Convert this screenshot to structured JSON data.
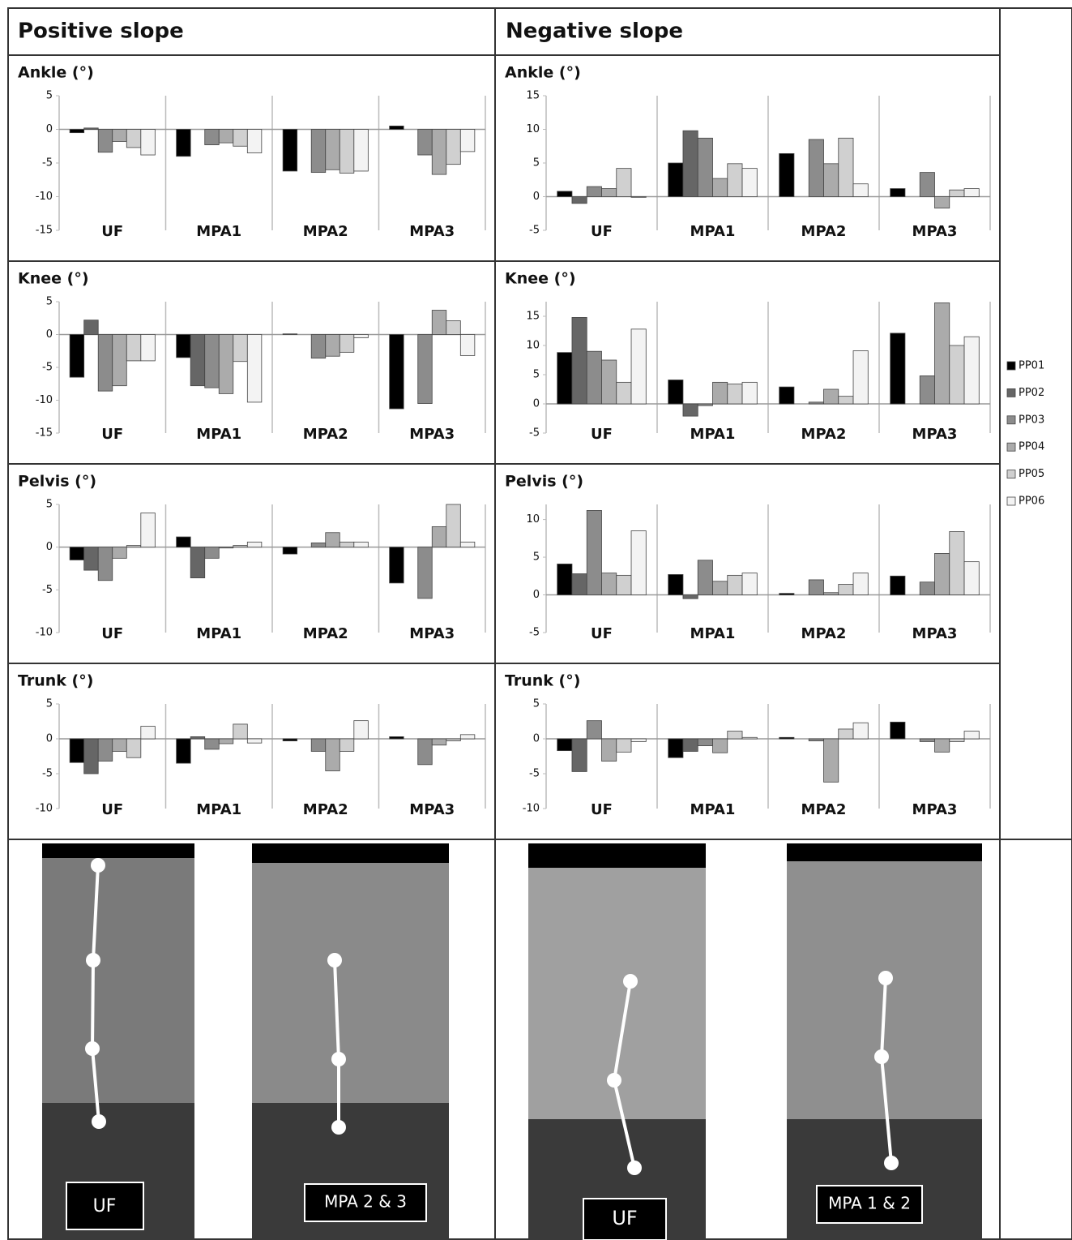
{
  "headers": [
    "Positive slope",
    "Negative slope"
  ],
  "legend": [
    {
      "name": "PP01",
      "color": "#000000"
    },
    {
      "name": "PP02",
      "color": "#666666"
    },
    {
      "name": "PP03",
      "color": "#8c8c8c"
    },
    {
      "name": "PP04",
      "color": "#ababab"
    },
    {
      "name": "PP05",
      "color": "#d0d0d0"
    },
    {
      "name": "PP06",
      "color": "#f3f3f3"
    }
  ],
  "chart_data": [
    {
      "type": "bar",
      "title": "Ankle (°)",
      "categories": [
        "UF",
        "MPA1",
        "MPA2",
        "MPA3"
      ],
      "ylim": [
        -15,
        5
      ],
      "yticks": [
        -15,
        -10,
        -5,
        0,
        5
      ],
      "series": [
        {
          "values": [
            -0.5,
            -4,
            -6.2,
            0.5
          ]
        },
        {
          "values": [
            0.2,
            0,
            0,
            0
          ]
        },
        {
          "values": [
            -3.4,
            -2.3,
            -6.4,
            -3.8
          ]
        },
        {
          "values": [
            -1.8,
            -2,
            -6,
            -6.7
          ]
        },
        {
          "values": [
            -2.7,
            -2.5,
            -6.5,
            -5.2
          ]
        },
        {
          "values": [
            -3.8,
            -3.5,
            -6.2,
            -3.3
          ]
        }
      ]
    },
    {
      "type": "bar",
      "title": "Ankle (°)",
      "categories": [
        "UF",
        "MPA1",
        "MPA2",
        "MPA3"
      ],
      "ylim": [
        -5,
        15
      ],
      "yticks": [
        -5,
        0,
        5,
        10,
        15
      ],
      "series": [
        {
          "values": [
            0.8,
            5,
            6.4,
            1.2
          ]
        },
        {
          "values": [
            -1,
            9.8,
            0,
            0
          ]
        },
        {
          "values": [
            1.5,
            8.7,
            8.5,
            3.6
          ]
        },
        {
          "values": [
            1.2,
            2.7,
            4.9,
            -1.7
          ]
        },
        {
          "values": [
            4.2,
            4.9,
            8.7,
            1
          ]
        },
        {
          "values": [
            -0.1,
            4.2,
            1.9,
            1.2
          ]
        }
      ]
    },
    {
      "type": "bar",
      "title": "Knee (°)",
      "categories": [
        "UF",
        "MPA1",
        "MPA2",
        "MPA3"
      ],
      "ylim": [
        -15,
        5
      ],
      "yticks": [
        -15,
        -10,
        -5,
        0,
        5
      ],
      "series": [
        {
          "values": [
            -6.5,
            -3.5,
            0.1,
            -11.3
          ]
        },
        {
          "values": [
            2.2,
            -7.8,
            0,
            0
          ]
        },
        {
          "values": [
            -8.6,
            -8.1,
            -3.6,
            -10.5
          ]
        },
        {
          "values": [
            -7.8,
            -9,
            -3.3,
            3.7
          ]
        },
        {
          "values": [
            -4,
            -4.1,
            -2.7,
            2.1
          ]
        },
        {
          "values": [
            -4,
            -10.3,
            -0.5,
            -3.2
          ]
        }
      ]
    },
    {
      "type": "bar",
      "title": "Knee (°)",
      "categories": [
        "UF",
        "MPA1",
        "MPA2",
        "MPA3"
      ],
      "ylim": [
        -5,
        17.5
      ],
      "yticks": [
        -5,
        0,
        5,
        10,
        15
      ],
      "series": [
        {
          "values": [
            8.8,
            4.1,
            2.9,
            12.1
          ]
        },
        {
          "values": [
            14.8,
            -2.1,
            0,
            0
          ]
        },
        {
          "values": [
            9,
            -0.3,
            0.3,
            4.8
          ]
        },
        {
          "values": [
            7.5,
            3.7,
            2.5,
            17.3
          ]
        },
        {
          "values": [
            3.7,
            3.4,
            1.3,
            10
          ]
        },
        {
          "values": [
            12.8,
            3.7,
            9.1,
            11.5
          ]
        }
      ]
    },
    {
      "type": "bar",
      "title": "Pelvis (°)",
      "categories": [
        "UF",
        "MPA1",
        "MPA2",
        "MPA3"
      ],
      "ylim": [
        -10,
        5
      ],
      "yticks": [
        -10,
        -5,
        0,
        5
      ],
      "series": [
        {
          "values": [
            -1.5,
            1.2,
            -0.8,
            -4.2
          ]
        },
        {
          "values": [
            -2.7,
            -3.6,
            0,
            0
          ]
        },
        {
          "values": [
            -3.9,
            -1.3,
            0.5,
            -6
          ]
        },
        {
          "values": [
            -1.3,
            -0.1,
            1.7,
            2.4
          ]
        },
        {
          "values": [
            0.2,
            0.2,
            0.6,
            5
          ]
        },
        {
          "values": [
            4,
            0.6,
            0.6,
            0.6
          ]
        }
      ]
    },
    {
      "type": "bar",
      "title": "Pelvis (°)",
      "categories": [
        "UF",
        "MPA1",
        "MPA2",
        "MPA3"
      ],
      "ylim": [
        -5,
        12
      ],
      "yticks": [
        -5,
        0,
        5,
        10
      ],
      "series": [
        {
          "values": [
            4.1,
            2.7,
            0.2,
            2.5
          ]
        },
        {
          "values": [
            2.8,
            -0.5,
            0,
            0
          ]
        },
        {
          "values": [
            11.2,
            4.6,
            2,
            1.7
          ]
        },
        {
          "values": [
            2.9,
            1.8,
            0.3,
            5.5
          ]
        },
        {
          "values": [
            2.6,
            2.6,
            1.4,
            8.4
          ]
        },
        {
          "values": [
            8.5,
            2.9,
            2.9,
            4.4
          ]
        }
      ]
    },
    {
      "type": "bar",
      "title": "Trunk (°)",
      "categories": [
        "UF",
        "MPA1",
        "MPA2",
        "MPA3"
      ],
      "ylim": [
        -10,
        5
      ],
      "yticks": [
        -10,
        -5,
        0,
        5
      ],
      "series": [
        {
          "values": [
            -3.4,
            -3.5,
            -0.3,
            0.3
          ]
        },
        {
          "values": [
            -5,
            0.3,
            0,
            0
          ]
        },
        {
          "values": [
            -3.2,
            -1.5,
            -1.8,
            -3.7
          ]
        },
        {
          "values": [
            -1.8,
            -0.7,
            -4.6,
            -0.9
          ]
        },
        {
          "values": [
            -2.7,
            2.1,
            -1.8,
            -0.3
          ]
        },
        {
          "values": [
            1.8,
            -0.6,
            2.6,
            0.6
          ]
        }
      ]
    },
    {
      "type": "bar",
      "title": "Trunk (°)",
      "categories": [
        "UF",
        "MPA1",
        "MPA2",
        "MPA3"
      ],
      "ylim": [
        -10,
        5
      ],
      "yticks": [
        -10,
        -5,
        0,
        5
      ],
      "series": [
        {
          "values": [
            -1.7,
            -2.7,
            0.2,
            2.4
          ]
        },
        {
          "values": [
            -4.7,
            -1.8,
            0,
            0
          ]
        },
        {
          "values": [
            2.6,
            -1,
            -0.3,
            -0.4
          ]
        },
        {
          "values": [
            -3.2,
            -2,
            -6.2,
            -1.9
          ]
        },
        {
          "values": [
            -1.9,
            1.1,
            1.4,
            -0.4
          ]
        },
        {
          "values": [
            -0.4,
            0.2,
            2.3,
            1.1
          ]
        }
      ]
    }
  ],
  "photos": [
    "UF",
    "MPA 2 & 3",
    "UF",
    "MPA 1 & 2"
  ]
}
